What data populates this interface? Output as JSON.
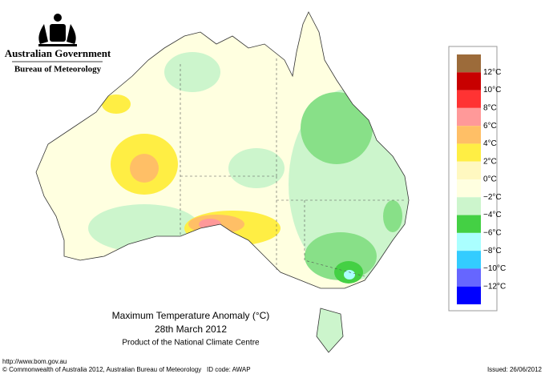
{
  "header": {
    "government": "Australian Government",
    "agency": "Bureau of Meteorology"
  },
  "map": {
    "title": "Maximum Temperature Anomaly (°C)",
    "date": "28th March 2012",
    "product": "Product of the National Climate Centre"
  },
  "legend": {
    "colors": [
      "#9c6b3a",
      "#c80000",
      "#ff3333",
      "#ff9999",
      "#ffbf66",
      "#ffee44",
      "#fff8c0",
      "#ffffe0",
      "#ccf5cc",
      "#44d044",
      "#aaffff",
      "#33ccff",
      "#6666ff",
      "#0000ff"
    ],
    "labels": [
      "12°C",
      "10°C",
      "8°C",
      "6°C",
      "4°C",
      "2°C",
      "0°C",
      "−2°C",
      "−4°C",
      "−6°C",
      "−8°C",
      "−10°C",
      "−12°C"
    ]
  },
  "footer": {
    "url": "http://www.bom.gov.au",
    "copyright": "© Commonwealth of Australia 2012, Australian Bureau of Meteorology",
    "id_code": "ID code: AWAP",
    "issued": "Issued: 26/06/2012"
  }
}
